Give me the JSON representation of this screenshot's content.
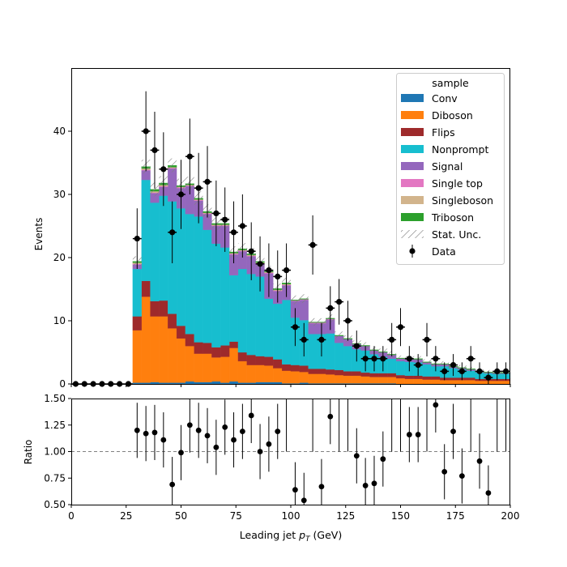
{
  "chart_data": {
    "type": "bar",
    "subtype": "stacked-step-histogram-with-data-and-ratio",
    "x_label_prefix": "Leading jet  ",
    "x_label_var": "p",
    "x_label_sub": "T",
    "x_label_unit": " (GeV)",
    "upper": {
      "ylabel": "Events",
      "xlim": [
        0,
        200
      ],
      "ylim": [
        0,
        50
      ],
      "yticks": [
        "0",
        "10",
        "20",
        "30",
        "40"
      ],
      "ytick_values": [
        0,
        10,
        20,
        30,
        40
      ]
    },
    "lower": {
      "ylabel": "Ratio",
      "ylim": [
        0.5,
        1.5
      ],
      "yticks": [
        "0.50",
        "0.75",
        "1.00",
        "1.25",
        "1.50"
      ],
      "ytick_values": [
        0.5,
        0.75,
        1.0,
        1.25,
        1.5
      ],
      "reference_line": 1.0
    },
    "xticks": [
      "0",
      "25",
      "50",
      "75",
      "100",
      "125",
      "150",
      "175",
      "200"
    ],
    "xtick_values": [
      0,
      25,
      50,
      75,
      100,
      125,
      150,
      175,
      200
    ],
    "bin_edges": [
      0,
      4,
      8,
      12,
      16,
      20,
      24,
      28,
      32,
      36,
      40,
      44,
      48,
      52,
      56,
      60,
      64,
      68,
      72,
      76,
      80,
      84,
      88,
      92,
      96,
      100,
      104,
      108,
      112,
      116,
      120,
      124,
      128,
      132,
      136,
      140,
      144,
      148,
      152,
      156,
      160,
      164,
      168,
      172,
      176,
      180,
      184,
      188,
      192,
      196,
      200
    ],
    "legend": {
      "title": "sample",
      "placement": "upper right",
      "entries": [
        "Conv",
        "Diboson",
        "Flips",
        "Nonprompt",
        "Signal",
        "Single top",
        "Singleboson",
        "Triboson",
        "Stat. Unc.",
        "Data"
      ]
    },
    "series": [
      {
        "name": "Conv",
        "color": "#1f77b4",
        "values": [
          0,
          0,
          0,
          0,
          0,
          0,
          0,
          0.2,
          0.2,
          0.3,
          0.2,
          0.2,
          0.2,
          0.4,
          0.3,
          0.3,
          0.4,
          0.2,
          0.4,
          0.2,
          0.2,
          0.3,
          0.3,
          0.3,
          0.1,
          0.1,
          0.2,
          0.1,
          0.1,
          0.1,
          0.1,
          0.1,
          0.1,
          0.1,
          0.1,
          0.1,
          0.1,
          0,
          0,
          0,
          0,
          0,
          0,
          0,
          0,
          0,
          0,
          0,
          0,
          0
        ]
      },
      {
        "name": "Diboson",
        "color": "#ff7f0e",
        "values": [
          0,
          0,
          0,
          0,
          0,
          0,
          0,
          8.3,
          13.6,
          10.4,
          10.5,
          8.6,
          7,
          5.6,
          4.5,
          4.5,
          3.8,
          4.1,
          5.3,
          3.4,
          2.8,
          2.7,
          2.6,
          2.2,
          2,
          1.9,
          1.7,
          1.5,
          1.5,
          1.4,
          1.3,
          1.2,
          1.2,
          1.1,
          1,
          1,
          1,
          0.9,
          0.8,
          0.8,
          0.7,
          0.7,
          0.6,
          0.6,
          0.6,
          0.6,
          0.5,
          0.5,
          0.5,
          0.5
        ]
      },
      {
        "name": "Flips",
        "color": "#9e2a2b",
        "values": [
          0,
          0,
          0,
          0,
          0,
          0,
          0,
          2.2,
          2.5,
          2.4,
          2.5,
          2.3,
          2,
          1.9,
          1.8,
          1.7,
          1.6,
          1.8,
          1,
          1.4,
          1.6,
          1.4,
          1.4,
          1.4,
          1,
          1,
          1,
          0.8,
          0.8,
          0.8,
          0.8,
          0.7,
          0.7,
          0.6,
          0.6,
          0.6,
          0.6,
          0.5,
          0.5,
          0.5,
          0.5,
          0.5,
          0.4,
          0.4,
          0.4,
          0.4,
          0.3,
          0.3,
          0.3,
          0.3
        ]
      },
      {
        "name": "Nonprompt",
        "color": "#17becf",
        "values": [
          0,
          0,
          0,
          0,
          0,
          0,
          0,
          7.5,
          16,
          15.6,
          16.6,
          17.8,
          18.6,
          19,
          19.9,
          17.9,
          16.4,
          15.5,
          10.5,
          13.2,
          12.8,
          12.6,
          9.2,
          8.8,
          10.2,
          7.5,
          7.2,
          5.5,
          5.5,
          5.7,
          4.3,
          4,
          3.5,
          3.5,
          3,
          2.6,
          2.3,
          2.2,
          2.2,
          2.1,
          1.9,
          1.6,
          1.8,
          1.5,
          1.3,
          1.1,
          1,
          0.9,
          0.8,
          0.8
        ]
      },
      {
        "name": "Signal",
        "color": "#9467bd",
        "values": [
          0,
          0,
          0,
          0,
          0,
          0,
          0,
          0.7,
          1.5,
          1.5,
          1.4,
          5.2,
          3.2,
          4.4,
          2.5,
          2.5,
          2.8,
          3.4,
          3.3,
          2.8,
          2.8,
          2,
          4,
          2,
          2.3,
          2.6,
          3.2,
          1.7,
          1.7,
          2.2,
          1.1,
          1.1,
          0.8,
          0.7,
          0.6,
          0.7,
          0.6,
          0.4,
          0.4,
          0.5,
          0.3,
          0.3,
          0.3,
          0.2,
          0.2,
          0.2,
          0.1,
          0.1,
          0.1,
          0.1
        ]
      },
      {
        "name": "Single top",
        "color": "#e377c2",
        "values": [
          0,
          0,
          0,
          0,
          0,
          0,
          0,
          0.1,
          0.1,
          0.1,
          0.1,
          0.1,
          0.1,
          0.1,
          0.1,
          0.1,
          0.1,
          0.1,
          0.1,
          0.1,
          0.1,
          0.1,
          0.1,
          0.1,
          0.1,
          0.1,
          0.1,
          0.1,
          0.1,
          0.1,
          0,
          0,
          0,
          0,
          0,
          0,
          0,
          0,
          0,
          0,
          0,
          0,
          0,
          0,
          0,
          0,
          0,
          0,
          0,
          0
        ]
      },
      {
        "name": "Singleboson",
        "color": "#d2b48c",
        "values": [
          0,
          0,
          0,
          0,
          0,
          0,
          0,
          0.2,
          0.2,
          0.2,
          0.2,
          0.1,
          0.1,
          0.1,
          0.1,
          0.1,
          0.1,
          0.1,
          0.1,
          0.1,
          0.1,
          0.1,
          0.1,
          0.1,
          0.1,
          0,
          0,
          0,
          0,
          0,
          0,
          0,
          0,
          0,
          0,
          0,
          0,
          0,
          0,
          0,
          0,
          0,
          0,
          0,
          0,
          0,
          0,
          0,
          0,
          0
        ]
      },
      {
        "name": "Triboson",
        "color": "#2ca02c",
        "values": [
          0,
          0,
          0,
          0,
          0,
          0,
          0,
          0.2,
          0.3,
          0.3,
          0.3,
          0.3,
          0.2,
          0.2,
          0.2,
          0.2,
          0.2,
          0.2,
          0.2,
          0.2,
          0.2,
          0.2,
          0.2,
          0.2,
          0.2,
          0.1,
          0.1,
          0.1,
          0.1,
          0.1,
          0.1,
          0.1,
          0.1,
          0.1,
          0.1,
          0.1,
          0.1,
          0.1,
          0.1,
          0.1,
          0.1,
          0.1,
          0.1,
          0.1,
          0.1,
          0.1,
          0.1,
          0.1,
          0.1,
          0.1
        ]
      }
    ],
    "stat_unc": [
      0,
      0,
      0,
      0,
      0,
      0,
      0,
      0.8,
      1.1,
      1.1,
      1.1,
      1.1,
      1.1,
      1.1,
      1.1,
      1.1,
      1,
      1,
      0.9,
      0.9,
      0.9,
      0.9,
      0.8,
      0.8,
      0.8,
      0.7,
      0.7,
      0.6,
      0.6,
      0.6,
      0.6,
      0.5,
      0.5,
      0.5,
      0.5,
      0.5,
      0.5,
      0.4,
      0.4,
      0.4,
      0.4,
      0.4,
      0.4,
      0.4,
      0.4,
      0.3,
      0.3,
      0.3,
      0.3,
      0.3
    ],
    "data": {
      "name": "Data",
      "x": [
        2,
        6,
        10,
        14,
        18,
        22,
        26,
        30,
        34,
        38,
        42,
        46,
        50,
        54,
        58,
        62,
        66,
        70,
        74,
        78,
        82,
        86,
        90,
        94,
        98,
        102,
        106,
        110,
        114,
        118,
        122,
        126,
        130,
        134,
        138,
        142,
        146,
        150,
        154,
        158,
        162,
        166,
        170,
        174,
        178,
        182,
        186,
        190,
        194,
        198
      ],
      "y": [
        0,
        0,
        0,
        0,
        0,
        0,
        0,
        23,
        40,
        37,
        34,
        24,
        30,
        36,
        31,
        32,
        27,
        26,
        24,
        25,
        21,
        19,
        18,
        17,
        18,
        9,
        7,
        22,
        7,
        12,
        13,
        10,
        6,
        4,
        4,
        4,
        7,
        9,
        4,
        3,
        7,
        4,
        2,
        3,
        2,
        4,
        2,
        1,
        2,
        2
      ],
      "xerr": 2
    },
    "ratio": {
      "x": [
        30,
        34,
        38,
        42,
        46,
        50,
        54,
        58,
        62,
        66,
        70,
        74,
        78,
        82,
        86,
        90,
        94,
        98,
        102,
        106,
        110,
        114,
        118,
        122,
        126,
        130,
        134,
        138,
        142,
        146,
        150,
        154,
        158,
        162,
        166,
        170,
        174,
        178,
        182,
        186,
        190,
        194,
        198
      ],
      "y": [
        1.2,
        1.17,
        1.18,
        1.11,
        0.69,
        0.99,
        1.25,
        1.2,
        1.15,
        1.04,
        1.23,
        1.11,
        1.19,
        1.34,
        1.0,
        1.07,
        1.19,
        null,
        0.64,
        0.54,
        null,
        0.67,
        1.33,
        null,
        null,
        0.96,
        0.68,
        0.7,
        0.93,
        null,
        null,
        1.16,
        1.16,
        null,
        1.44,
        0.81,
        1.19,
        0.77,
        null,
        0.91,
        0.61,
        null,
        null
      ]
    }
  }
}
